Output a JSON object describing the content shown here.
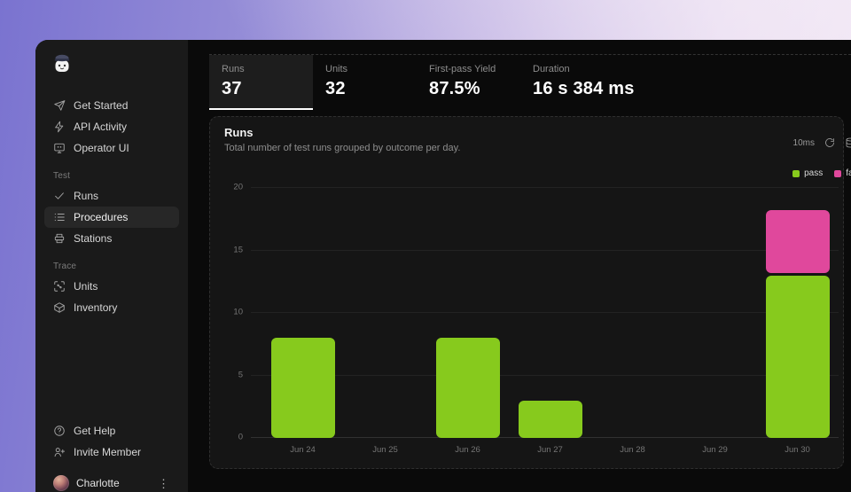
{
  "sidebar": {
    "nav": [
      {
        "label": "Get Started"
      },
      {
        "label": "API Activity"
      },
      {
        "label": "Operator UI"
      }
    ],
    "section_test": {
      "label": "Test",
      "items": [
        {
          "label": "Runs"
        },
        {
          "label": "Procedures",
          "selected": true
        },
        {
          "label": "Stations"
        }
      ]
    },
    "section_trace": {
      "label": "Trace",
      "items": [
        {
          "label": "Units"
        },
        {
          "label": "Inventory"
        }
      ]
    },
    "footer": [
      {
        "label": "Get Help"
      },
      {
        "label": "Invite Member"
      }
    ],
    "user": {
      "name": "Charlotte"
    }
  },
  "stats": {
    "tabs": [
      {
        "label": "Runs",
        "value": "37",
        "selected": true
      },
      {
        "label": "Units",
        "value": "32"
      },
      {
        "label": "First-pass Yield",
        "value": "87.5%"
      },
      {
        "label": "Duration",
        "value": "16 s 384 ms"
      }
    ]
  },
  "chart_card": {
    "title": "Runs",
    "subtitle": "Total number of test runs grouped by outcome per day.",
    "latency": "10ms"
  },
  "chart_data": {
    "type": "bar",
    "stacked": true,
    "title": "Runs",
    "categories": [
      "Jun 24",
      "Jun 25",
      "Jun 26",
      "Jun 27",
      "Jun 28",
      "Jun 29",
      "Jun 30"
    ],
    "series": [
      {
        "name": "pass",
        "color": "#87ca1d",
        "values": [
          8,
          0,
          8,
          3,
          0,
          0,
          13
        ]
      },
      {
        "name": "fail",
        "color": "#e0489c",
        "values": [
          0,
          0,
          0,
          0,
          0,
          0,
          5
        ]
      }
    ],
    "ylim": [
      0,
      20
    ],
    "yticks": [
      0,
      5,
      10,
      15,
      20
    ],
    "grid": true,
    "legend_position": "top-right"
  },
  "colors": {
    "pass": "#87ca1d",
    "fail": "#e0489c",
    "selected_tab_underline": "#ffffff",
    "window_bg": "#0b0b0b",
    "sidebar_bg": "#1a1a1a",
    "card_bg": "#151515"
  }
}
